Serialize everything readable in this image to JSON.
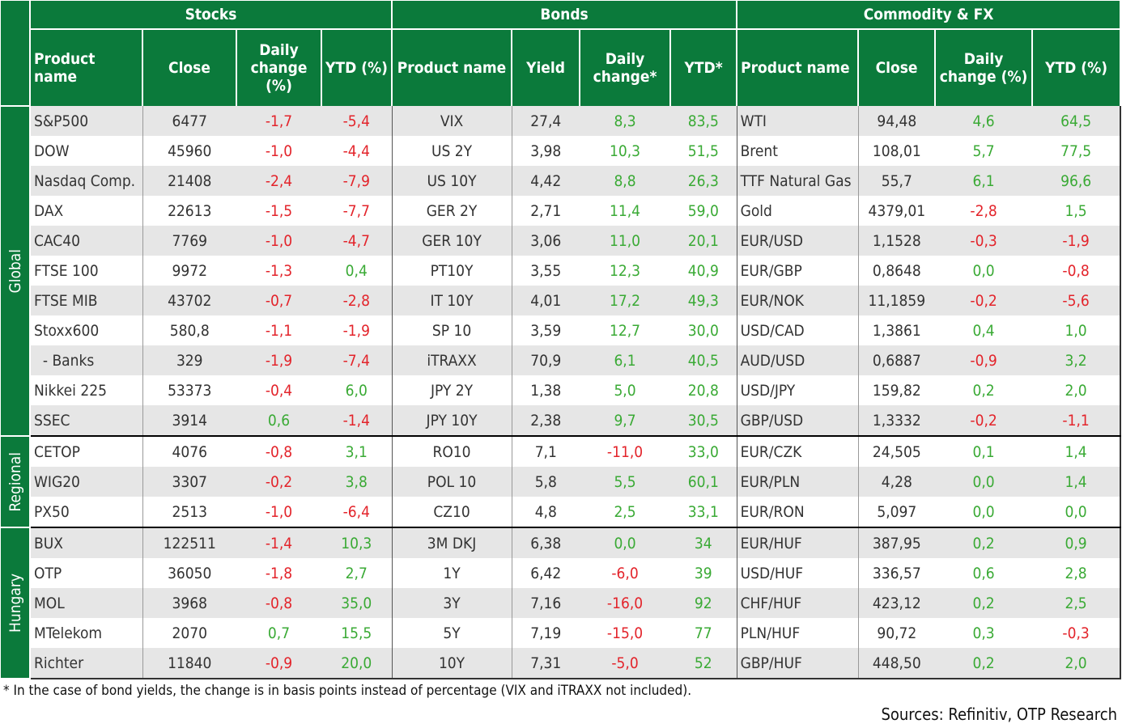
{
  "header": {
    "groups": [
      "Stocks",
      "Bonds",
      "Commodity & FX"
    ],
    "columns": [
      "Product name",
      "Close",
      "Daily change (%)",
      "YTD (%)",
      "Product name",
      "Yield",
      "Daily change*",
      "YTD*",
      "Product name",
      "Close",
      "Daily change (%)",
      "YTD (%)"
    ]
  },
  "sections": [
    {
      "label": "Global",
      "rows": [
        [
          "S&P500",
          "6477",
          "-1,7",
          "-5,4",
          "VIX",
          "27,4",
          "8,3",
          "83,5",
          "WTI",
          "94,48",
          "4,6",
          "64,5"
        ],
        [
          "DOW",
          "45960",
          "-1,0",
          "-4,4",
          "US 2Y",
          "3,98",
          "10,3",
          "51,5",
          "Brent",
          "108,01",
          "5,7",
          "77,5"
        ],
        [
          "Nasdaq Comp.",
          "21408",
          "-2,4",
          "-7,9",
          "US 10Y",
          "4,42",
          "8,8",
          "26,3",
          "TTF Natural Gas",
          "55,7",
          "6,1",
          "96,6"
        ],
        [
          "DAX",
          "22613",
          "-1,5",
          "-7,7",
          "GER 2Y",
          "2,71",
          "11,4",
          "59,0",
          "Gold",
          "4379,01",
          "-2,8",
          "1,5"
        ],
        [
          "CAC40",
          "7769",
          "-1,0",
          "-4,7",
          "GER 10Y",
          "3,06",
          "11,0",
          "20,1",
          "EUR/USD",
          "1,1528",
          "-0,3",
          "-1,9"
        ],
        [
          "FTSE 100",
          "9972",
          "-1,3",
          "0,4",
          "PT10Y",
          "3,55",
          "12,3",
          "40,9",
          "EUR/GBP",
          "0,8648",
          "0,0",
          "-0,8"
        ],
        [
          "FTSE MIB",
          "43702",
          "-0,7",
          "-2,8",
          "IT 10Y",
          "4,01",
          "17,2",
          "49,3",
          "EUR/NOK",
          "11,1859",
          "-0,2",
          "-5,6"
        ],
        [
          "Stoxx600",
          "580,8",
          "-1,1",
          "-1,9",
          "SP 10",
          "3,59",
          "12,7",
          "30,0",
          "USD/CAD",
          "1,3861",
          "0,4",
          "1,0"
        ],
        [
          "  - Banks",
          "329",
          "-1,9",
          "-7,4",
          "iTRAXX",
          "70,9",
          "6,1",
          "40,5",
          "AUD/USD",
          "0,6887",
          "-0,9",
          "3,2"
        ],
        [
          "Nikkei 225",
          "53373",
          "-0,4",
          "6,0",
          "JPY 2Y",
          "1,38",
          "5,0",
          "20,8",
          "USD/JPY",
          "159,82",
          "0,2",
          "2,0"
        ],
        [
          "SSEC",
          "3914",
          "0,6",
          "-1,4",
          "JPY 10Y",
          "2,38",
          "9,7",
          "30,5",
          "GBP/USD",
          "1,3332",
          "-0,2",
          "-1,1"
        ]
      ]
    },
    {
      "label": "Regional",
      "rows": [
        [
          "CETOP",
          "4076",
          "-0,8",
          "3,1",
          "RO10",
          "7,1",
          "-11,0",
          "33,0",
          "EUR/CZK",
          "24,505",
          "0,1",
          "1,4"
        ],
        [
          "WIG20",
          "3307",
          "-0,2",
          "3,8",
          "POL 10",
          "5,8",
          "5,5",
          "60,1",
          "EUR/PLN",
          "4,28",
          "0,0",
          "1,4"
        ],
        [
          "PX50",
          "2513",
          "-1,0",
          "-6,4",
          "CZ10",
          "4,8",
          "2,5",
          "33,1",
          "EUR/RON",
          "5,097",
          "0,0",
          "0,0"
        ]
      ]
    },
    {
      "label": "Hungary",
      "rows": [
        [
          "BUX",
          "122511",
          "-1,4",
          "10,3",
          "3M DKJ",
          "6,38",
          "0,0",
          "34",
          "EUR/HUF",
          "387,95",
          "0,2",
          "0,9"
        ],
        [
          "OTP",
          "36050",
          "-1,8",
          "2,7",
          "1Y",
          "6,42",
          "-6,0",
          "39",
          "USD/HUF",
          "336,57",
          "0,6",
          "2,8"
        ],
        [
          "MOL",
          "3968",
          "-0,8",
          "35,0",
          "3Y",
          "7,16",
          "-16,0",
          "92",
          "CHF/HUF",
          "423,12",
          "0,2",
          "2,5"
        ],
        [
          "MTelekom",
          "2070",
          "0,7",
          "15,5",
          "5Y",
          "7,19",
          "-15,0",
          "77",
          "PLN/HUF",
          "90,72",
          "0,3",
          "-0,3"
        ],
        [
          "Richter",
          "11840",
          "-0,9",
          "20,0",
          "10Y",
          "7,31",
          "-5,0",
          "52",
          "GBP/HUF",
          "448,50",
          "0,2",
          "2,0"
        ]
      ]
    }
  ],
  "footnote": "* In the case of bond yields, the change is in basis points instead of percentage (VIX and iTRAXX not included).",
  "sources": "Sources: Refinitiv, OTP Research"
}
